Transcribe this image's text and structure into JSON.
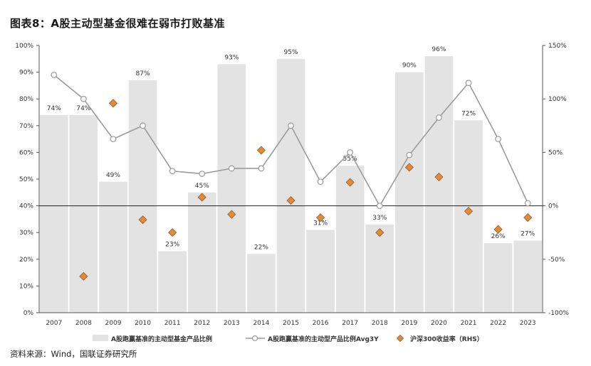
{
  "title": "图表8：A股主动型基金很难在弱市打败基准",
  "source": "资料来源：Wind，国联证券研究所",
  "colors": {
    "bar": "#e3e3e3",
    "line": "#9b9b9b",
    "marker": "#e08a3c",
    "marker_edge": "#9a5a1e",
    "axis": "#555555",
    "baseline": "#222222"
  },
  "chart_data": {
    "type": "bar",
    "categories": [
      "2007",
      "2008",
      "2009",
      "2010",
      "2011",
      "2012",
      "2013",
      "2014",
      "2015",
      "2016",
      "2017",
      "2018",
      "2019",
      "2020",
      "2021",
      "2022",
      "2023"
    ],
    "y_left_ticks": [
      "0%",
      "10%",
      "20%",
      "30%",
      "40%",
      "50%",
      "60%",
      "70%",
      "80%",
      "90%",
      "100%"
    ],
    "y_right_ticks": [
      "-100%",
      "-50%",
      "0%",
      "50%",
      "100%",
      "150%"
    ],
    "ylim_left": [
      0,
      100
    ],
    "ylim_right": [
      -100,
      150
    ],
    "grid": false,
    "legend_position": "bottom",
    "series": [
      {
        "name": "A股跑赢基准的主动型基金产品比例",
        "kind": "bar",
        "axis": "left",
        "values": [
          74,
          74,
          49,
          87,
          23,
          45,
          93,
          22,
          95,
          31,
          55,
          33,
          90,
          96,
          72,
          26,
          27
        ],
        "labels": [
          "74%",
          "74%",
          "49%",
          "87%",
          "23%",
          "45%",
          "93%",
          "22%",
          "95%",
          "31%",
          "55%",
          "33%",
          "90%",
          "96%",
          "72%",
          "26%",
          "27%"
        ]
      },
      {
        "name": "A股跑赢基准的主动型产品比例Avg3Y",
        "kind": "line",
        "axis": "left",
        "values": [
          89,
          80,
          65,
          70,
          53,
          52,
          54,
          54,
          70,
          49,
          60,
          40,
          59,
          73,
          86,
          65,
          41
        ]
      },
      {
        "name": "沪深300收益率（RHS）",
        "kind": "scatter",
        "axis": "right",
        "values": [
          null,
          -66,
          96,
          -13,
          -25,
          8,
          -8,
          52,
          5,
          -11,
          22,
          -25,
          36,
          27,
          -5,
          -22,
          -11
        ]
      }
    ]
  }
}
